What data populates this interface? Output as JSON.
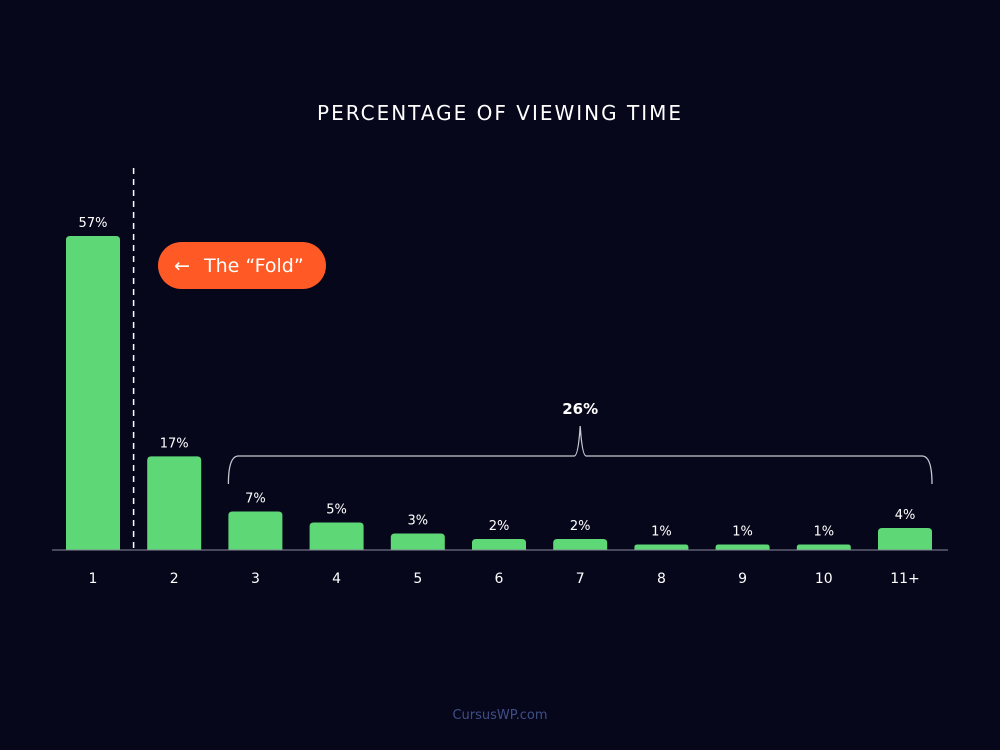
{
  "chart_data": {
    "type": "bar",
    "title": "PERCENTAGE OF VIEWING TIME",
    "xlabel": "",
    "ylabel": "",
    "categories": [
      "1",
      "2",
      "3",
      "4",
      "5",
      "6",
      "7",
      "8",
      "9",
      "10",
      "11+"
    ],
    "values": [
      57,
      17,
      7,
      5,
      3,
      2,
      2,
      1,
      1,
      1,
      4
    ],
    "value_labels": [
      "57%",
      "17%",
      "7%",
      "5%",
      "3%",
      "2%",
      "2%",
      "1%",
      "1%",
      "1%",
      "4%"
    ],
    "ylim": [
      0,
      57
    ],
    "grid": false,
    "annotations": {
      "fold": {
        "label": "The “Fold”",
        "arrow": "←",
        "between_categories": [
          "1",
          "2"
        ]
      },
      "group": {
        "label": "26%",
        "from_category": "3",
        "to_category": "11+"
      }
    },
    "colors": {
      "background": "#07071c",
      "bar": "#5ed777",
      "fold_badge": "#ff5a26",
      "text": "#ffffff",
      "axis": "#8a8a9e",
      "footer": "#3f4f86"
    }
  },
  "footer": {
    "credit": "CursusWP.com"
  }
}
